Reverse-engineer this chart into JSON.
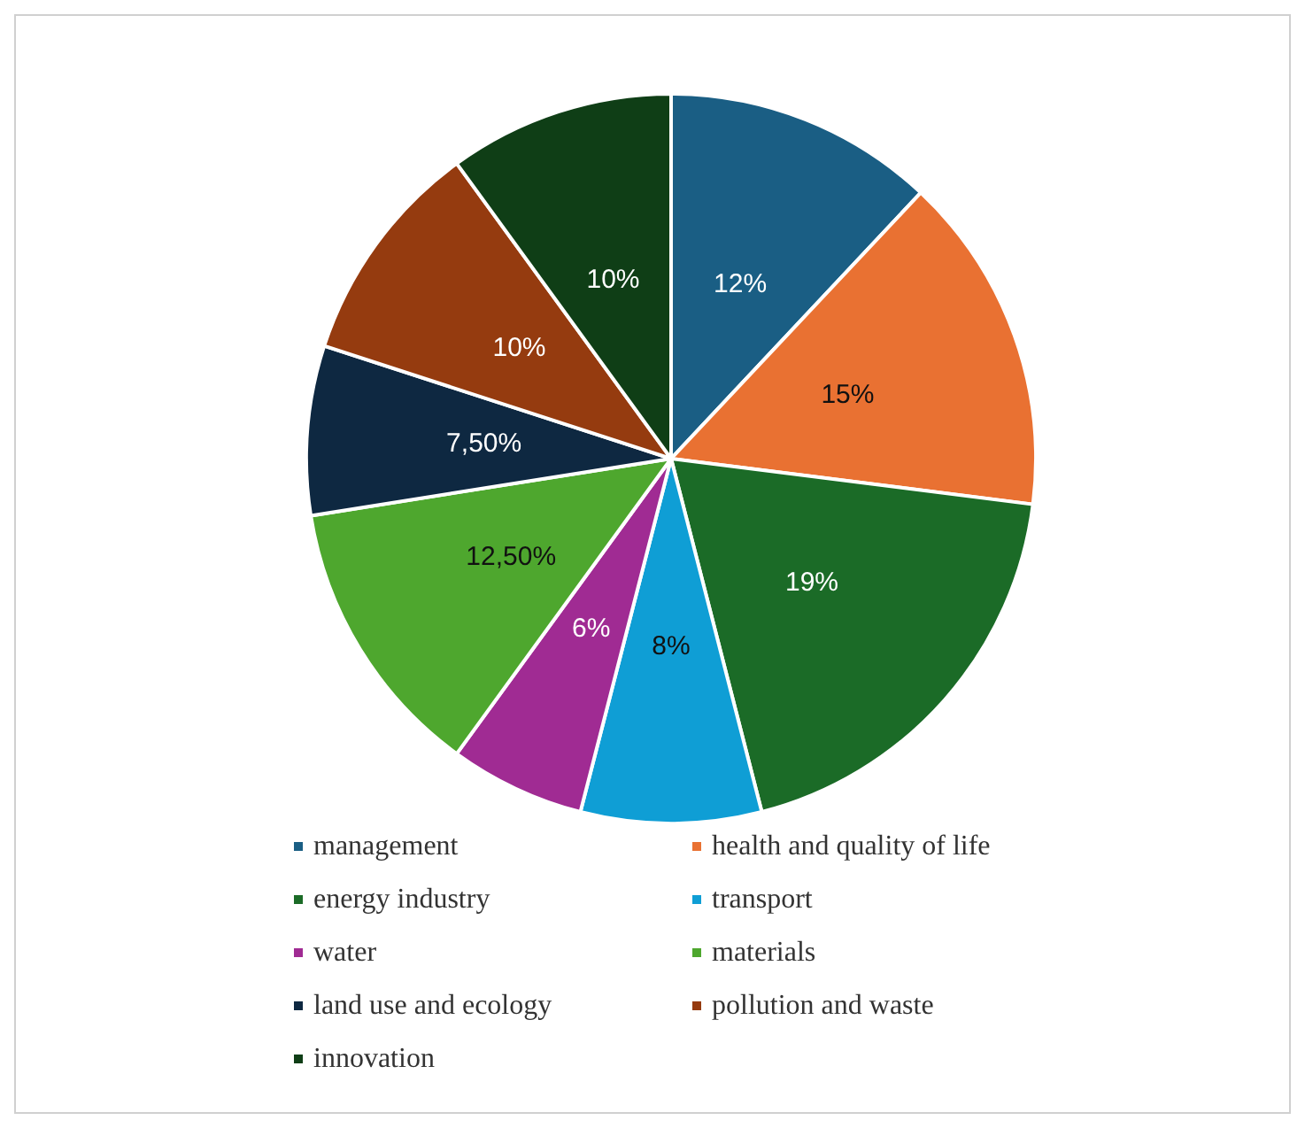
{
  "chart_data": {
    "type": "pie",
    "categories": [
      "management",
      "health and quality of life",
      "energy industry",
      "transport",
      "water",
      "materials",
      "land use and ecology",
      "pollution and waste",
      "innovation"
    ],
    "values": [
      12,
      15,
      19,
      8,
      6,
      12.5,
      7.5,
      10,
      10
    ],
    "value_labels": [
      "12%",
      "15%",
      "19%",
      "8%",
      "6%",
      "12,50%",
      "7,50%",
      "10%",
      "10%"
    ],
    "colors": [
      "#1a5e84",
      "#e97132",
      "#1b6b27",
      "#0f9ed5",
      "#a02b93",
      "#4ea72e",
      "#0e2841",
      "#953b0f",
      "#0f3e16"
    ],
    "legend": "bottom"
  }
}
